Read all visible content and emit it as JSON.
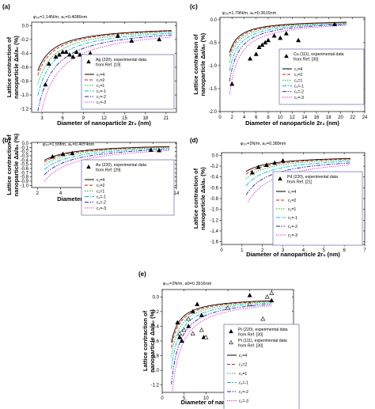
{
  "chart_data": [
    {
      "type": "line",
      "panel_label": "(a)",
      "param_text": "φ₀₀=1.14N/m, a₀=0.4086nm",
      "xlabel": "Diameter of nanoparticle  2r₀ (nm)",
      "ylabel_lines": [
        "Lattice contraction of",
        "nanoparticle  Δa/a₀ (%)"
      ],
      "xlim": [
        1.5,
        22.5
      ],
      "ylim": [
        -1.25,
        0.05
      ],
      "xticks": [
        3,
        6,
        9,
        12,
        15,
        18,
        21
      ],
      "yticks": [
        0.0,
        -0.2,
        -0.4,
        -0.6,
        -0.8,
        -1.0,
        -1.2
      ],
      "legend_entries": [
        "Ag (220), experimental data",
        "from Ref. [19]"
      ],
      "curve_k": [
        1.56,
        1.72,
        2.02,
        2.42,
        2.95,
        3.6
      ],
      "curve_xmin": [
        2.4,
        2.4,
        2.4,
        2.4,
        2.4,
        2.4
      ],
      "curve_xmax": 21.8,
      "series": [
        {
          "name": "c₁=4"
        },
        {
          "name": "c₁=2"
        },
        {
          "name": "c₁=1"
        },
        {
          "name": "c₁=-1"
        },
        {
          "name": "c₁=-2"
        },
        {
          "name": "c₁=-3"
        }
      ],
      "experimental": [
        {
          "marker": "filled-triangle",
          "points": [
            [
              3.5,
              -0.85
            ],
            [
              4.0,
              -0.55
            ],
            [
              5.0,
              -0.45
            ],
            [
              5.5,
              -0.42
            ],
            [
              6.0,
              -0.38
            ],
            [
              6.5,
              -0.38
            ],
            [
              7.0,
              -0.42
            ],
            [
              7.5,
              -0.45
            ],
            [
              8.0,
              -0.38
            ],
            [
              8.5,
              -0.42
            ],
            [
              9.0,
              -0.48
            ],
            [
              10.0,
              -0.4
            ],
            [
              11.0,
              -0.45
            ],
            [
              14.0,
              -0.15
            ],
            [
              16.0,
              -0.22
            ],
            [
              20.0,
              -0.2
            ]
          ]
        }
      ]
    },
    {
      "type": "line",
      "panel_label": "(c)",
      "param_text": "φ₀₀=1.79N/m, a₀=0.3615nm",
      "xlabel": "Diameter of nanoparticle  2r₀ (nm)",
      "ylabel_lines": [
        "Lattice contraction of",
        "nanoparticle  Δa/a₀ (%)"
      ],
      "xlim": [
        0,
        24
      ],
      "ylim": [
        -2.0,
        0.05
      ],
      "xticks": [
        0,
        2,
        4,
        6,
        8,
        10,
        12,
        14,
        16,
        18,
        20,
        22,
        24
      ],
      "yticks": [
        0.0,
        -0.5,
        -1.0,
        -1.5,
        -2.0
      ],
      "legend_entries": [
        "Cu (111), experimental data",
        "from Ref. [30]"
      ],
      "curve_k": [
        1.15,
        1.28,
        1.48,
        1.78,
        2.15,
        2.62
      ],
      "curve_xmin": [
        1.6,
        1.6,
        1.6,
        1.6,
        1.6,
        1.6
      ],
      "curve_xmax": 21,
      "series": [
        {
          "name": "c₁=4"
        },
        {
          "name": "c₁=2"
        },
        {
          "name": "c₁=1"
        },
        {
          "name": "c₁=-1"
        },
        {
          "name": "c₁=-2"
        },
        {
          "name": "c₁=-3"
        }
      ],
      "experimental": [
        {
          "marker": "filled-triangle",
          "points": [
            [
              2.0,
              -1.4
            ],
            [
              5.0,
              -0.85
            ],
            [
              6.0,
              -0.75
            ],
            [
              6.5,
              -0.6
            ],
            [
              7.0,
              -0.55
            ],
            [
              7.5,
              -0.5
            ],
            [
              8.0,
              -0.45
            ],
            [
              9.0,
              -0.35
            ],
            [
              10.0,
              -0.4
            ],
            [
              11.0,
              -0.3
            ],
            [
              13.0,
              -0.45
            ],
            [
              19.0,
              -0.1
            ]
          ]
        }
      ]
    },
    {
      "type": "line",
      "panel_label": "(b)",
      "param_text": "φ₀₀=1.5N/m, a₀=0.4074nm",
      "xlabel": "Diameter of nanoparticle  2r₀ (nm)",
      "ylabel_lines": [
        "Lattice contraction of",
        "nanoparticle  Δa/a₀ (%)"
      ],
      "xlim": [
        1.5,
        14
      ],
      "ylim": [
        -1.05,
        0.02
      ],
      "xticks": [
        2,
        4,
        6,
        8,
        10,
        12,
        14
      ],
      "yticks": [
        0.0,
        -0.1,
        -0.2,
        -0.3,
        -0.4,
        -0.5,
        -0.6,
        -0.7,
        -0.8,
        -0.9,
        -1.0
      ],
      "legend_entries": [
        "Au (220), experimental data",
        "from Ref. [29]"
      ],
      "curve_k": [
        1.05,
        1.15,
        1.33,
        1.62,
        1.95,
        2.35
      ],
      "curve_xmin": [
        2.6,
        2.6,
        2.6,
        2.6,
        2.6,
        2.6
      ],
      "curve_xmax": 13.4,
      "series": [
        {
          "name": "c₁=4"
        },
        {
          "name": "c₁=2"
        },
        {
          "name": "c₁=1"
        },
        {
          "name": "c₁=-1"
        },
        {
          "name": "c₁=-2"
        },
        {
          "name": "c₁=-3"
        }
      ],
      "experimental": [
        {
          "marker": "filled-triangle",
          "points": [
            [
              3.3,
              -0.32
            ],
            [
              4.2,
              -0.26
            ],
            [
              5.0,
              -0.24
            ],
            [
              11.8,
              -0.16
            ],
            [
              12.5,
              -0.17
            ]
          ]
        }
      ]
    },
    {
      "type": "line",
      "panel_label": "(d)",
      "param_text": "φ₀₀=2N/m, a₀=0.389nm",
      "xlabel": "Diameter of nanoparticle  2r₀ (nm)",
      "ylabel_lines": [
        "Lattice contraction of",
        "nanoparticle  Δa/a₀ (%)"
      ],
      "xlim": [
        0,
        7
      ],
      "ylim": [
        -1.65,
        0.05
      ],
      "xticks": [
        0,
        1,
        2,
        3,
        4,
        5,
        6,
        7
      ],
      "yticks": [
        0.0,
        -0.2,
        -0.4,
        -0.6,
        -0.8,
        -1.0,
        -1.2,
        -1.4,
        -1.6
      ],
      "legend_entries": [
        "Pd (220), experimental data",
        "from Ref. [21]"
      ],
      "curve_k": [
        0.36,
        0.42,
        0.52,
        0.68,
        0.88,
        1.12
      ],
      "curve_xmin": [
        1.2,
        1.2,
        1.2,
        1.2,
        1.2,
        1.3
      ],
      "curve_xmax": 6.3,
      "series": [
        {
          "name": "c₁=4"
        },
        {
          "name": "c₁=2"
        },
        {
          "name": "c₁=1"
        },
        {
          "name": "c₁=-1"
        },
        {
          "name": "c₁=-2"
        },
        {
          "name": "c₁=-3"
        }
      ],
      "experimental": [
        {
          "marker": "filled-triangle",
          "points": [
            [
              1.5,
              -0.32
            ],
            [
              1.8,
              -0.22
            ],
            [
              2.2,
              -0.18
            ],
            [
              2.6,
              -0.14
            ],
            [
              3.0,
              -0.1
            ]
          ]
        }
      ]
    },
    {
      "type": "line",
      "panel_label": "(e)",
      "param_text": "φ₀₀=2N/m, a0=0.3916nm",
      "xlabel": "Diameter of nanoparticle  2r₀ (nm)",
      "ylabel_lines": [
        "Lattice contraction of",
        "nanoparticle  Δa/a₀ (%)"
      ],
      "xlim": [
        0,
        30
      ],
      "ylim": [
        -1.3,
        0.1
      ],
      "xticks": [
        0,
        5,
        10,
        15,
        20,
        25,
        30
      ],
      "yticks": [
        0.0,
        -0.2,
        -0.4,
        -0.6,
        -0.8,
        -1.0,
        -1.2
      ],
      "legend_entries": [
        "Pt (220), experimental data",
        "from Ref. [30]",
        "Pt (111), experimental data",
        "from Ref. [30]"
      ],
      "curve_k": [
        1.3,
        1.45,
        1.7,
        2.05,
        2.5,
        3.0
      ],
      "curve_xmin": [
        2.1,
        2.1,
        2.1,
        2.1,
        2.1,
        2.1
      ],
      "curve_xmax": 25,
      "series": [
        {
          "name": "c₁=4"
        },
        {
          "name": "c₁=2"
        },
        {
          "name": "c₁=1"
        },
        {
          "name": "c₁=-1"
        },
        {
          "name": "c₁=-2"
        },
        {
          "name": "c₁=-3"
        }
      ],
      "experimental": [
        {
          "marker": "filled-triangle",
          "points": [
            [
              3.5,
              -0.35
            ],
            [
              4.0,
              -0.55
            ],
            [
              4.5,
              -0.6
            ],
            [
              6.0,
              -0.4
            ],
            [
              7.0,
              -0.2
            ],
            [
              8.0,
              -0.1
            ],
            [
              9.0,
              -0.25
            ],
            [
              9.5,
              -0.55
            ],
            [
              20.0,
              0.02
            ],
            [
              25.0,
              -0.05
            ]
          ]
        },
        {
          "marker": "open-triangle",
          "points": [
            [
              4.0,
              -0.5
            ],
            [
              5.0,
              -0.45
            ],
            [
              6.0,
              -0.3
            ],
            [
              7.0,
              -0.5
            ],
            [
              9.0,
              -0.45
            ],
            [
              10.0,
              -0.55
            ],
            [
              15.0,
              -0.15
            ],
            [
              20.0,
              -0.1
            ],
            [
              23.0,
              -0.3
            ],
            [
              24.0,
              0.0
            ],
            [
              25.0,
              0.05
            ]
          ]
        }
      ]
    }
  ],
  "style": {
    "series_colors": [
      "#000000",
      "#e01010",
      "#10b010",
      "#00b8d8",
      "#2020c0",
      "#e010d0"
    ],
    "series_dashes": [
      "",
      "4,2",
      "1.5,1.5",
      "5,1.5,1.5,1.5",
      "5,1.5,1.5,1.5,1.5,1.5",
      "1.2,1.5"
    ],
    "legend_border": "#6a6aa8"
  }
}
